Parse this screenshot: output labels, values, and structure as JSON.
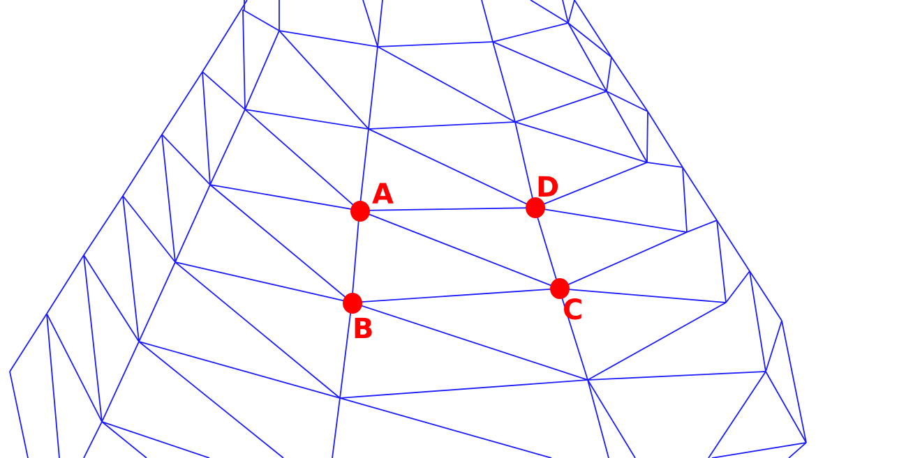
{
  "diagram": {
    "type": "triangulated-mesh-wireframe",
    "colors": {
      "background": "#ffffff",
      "mesh_edge": "#1a1aff",
      "marker": "#ff0000",
      "label": "#ff0000"
    },
    "points": [
      {
        "id": "A",
        "label": "A"
      },
      {
        "id": "B",
        "label": "B"
      },
      {
        "id": "C",
        "label": "C"
      },
      {
        "id": "D",
        "label": "D"
      }
    ]
  }
}
